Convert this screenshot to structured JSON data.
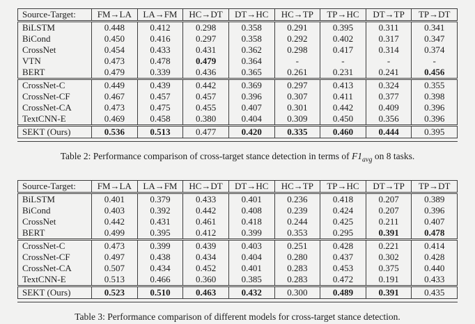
{
  "page": {
    "background": "#f2f2f1",
    "text_color": "#1c1c1c",
    "border_color": "#3d3d3d"
  },
  "tables": [
    {
      "id": "table-2",
      "header": [
        "Source-Target:",
        "FM→LA",
        "LA→FM",
        "HC→DT",
        "DT→HC",
        "HC→TP",
        "TP→HC",
        "DT→TP",
        "TP→DT"
      ],
      "groups": [
        {
          "rows": [
            {
              "label": "BiLSTM",
              "values": [
                "0.448",
                "0.412",
                "0.298",
                "0.358",
                "0.291",
                "0.395",
                "0.311",
                "0.341"
              ],
              "bold": []
            },
            {
              "label": "BiCond",
              "values": [
                "0.450",
                "0.416",
                "0.297",
                "0.358",
                "0.292",
                "0.402",
                "0.317",
                "0.347"
              ],
              "bold": []
            },
            {
              "label": "CrossNet",
              "values": [
                "0.454",
                "0.433",
                "0.431",
                "0.362",
                "0.298",
                "0.417",
                "0.314",
                "0.374"
              ],
              "bold": []
            },
            {
              "label": "VTN",
              "values": [
                "0.473",
                "0.478",
                "0.479",
                "0.364",
                "-",
                "-",
                "-",
                "-"
              ],
              "bold": [
                2
              ]
            },
            {
              "label": "BERT",
              "values": [
                "0.479",
                "0.339",
                "0.436",
                "0.365",
                "0.261",
                "0.231",
                "0.241",
                "0.456"
              ],
              "bold": [
                7
              ]
            }
          ]
        },
        {
          "rows": [
            {
              "label": "CrossNet-C",
              "values": [
                "0.449",
                "0.439",
                "0.442",
                "0.369",
                "0.297",
                "0.413",
                "0.324",
                "0.355"
              ],
              "bold": []
            },
            {
              "label": "CrossNet-CF",
              "values": [
                "0.467",
                "0.457",
                "0.457",
                "0.396",
                "0.307",
                "0.411",
                "0.377",
                "0.398"
              ],
              "bold": []
            },
            {
              "label": "CrossNet-CA",
              "values": [
                "0.473",
                "0.475",
                "0.455",
                "0.407",
                "0.301",
                "0.442",
                "0.409",
                "0.396"
              ],
              "bold": []
            },
            {
              "label": "TextCNN-E",
              "values": [
                "0.469",
                "0.458",
                "0.380",
                "0.404",
                "0.309",
                "0.450",
                "0.356",
                "0.396"
              ],
              "bold": []
            }
          ]
        },
        {
          "rows": [
            {
              "label": "SEKT (Ours)",
              "values": [
                "0.536",
                "0.513",
                "0.477",
                "0.420",
                "0.335",
                "0.460",
                "0.444",
                "0.395"
              ],
              "bold": [
                0,
                1,
                3,
                4,
                5,
                6
              ]
            }
          ]
        }
      ],
      "caption": {
        "prefix": "Table 2: Performance comparison of cross-target stance detection in terms of ",
        "math": "F1",
        "sub": "avg",
        "suffix": " on 8 tasks."
      }
    },
    {
      "id": "table-3",
      "header": [
        "Source-Target:",
        "FM→LA",
        "LA→FM",
        "HC→DT",
        "DT→HC",
        "HC→TP",
        "TP→HC",
        "DT→TP",
        "TP→DT"
      ],
      "groups": [
        {
          "rows": [
            {
              "label": "BiLSTM",
              "values": [
                "0.401",
                "0.379",
                "0.433",
                "0.401",
                "0.236",
                "0.418",
                "0.207",
                "0.389"
              ],
              "bold": []
            },
            {
              "label": "BiCond",
              "values": [
                "0.403",
                "0.392",
                "0.442",
                "0.408",
                "0.239",
                "0.424",
                "0.207",
                "0.396"
              ],
              "bold": []
            },
            {
              "label": "CrossNet",
              "values": [
                "0.442",
                "0.431",
                "0.461",
                "0.418",
                "0.244",
                "0.425",
                "0.211",
                "0.407"
              ],
              "bold": []
            },
            {
              "label": "BERT",
              "values": [
                "0.499",
                "0.395",
                "0.412",
                "0.399",
                "0.353",
                "0.295",
                "0.391",
                "0.478"
              ],
              "bold": [
                6,
                7
              ]
            }
          ]
        },
        {
          "rows": [
            {
              "label": "CrossNet-C",
              "values": [
                "0.473",
                "0.399",
                "0.439",
                "0.403",
                "0.251",
                "0.428",
                "0.221",
                "0.414"
              ],
              "bold": []
            },
            {
              "label": "CrossNet-CF",
              "values": [
                "0.497",
                "0.438",
                "0.434",
                "0.404",
                "0.280",
                "0.437",
                "0.302",
                "0.428"
              ],
              "bold": []
            },
            {
              "label": "CrossNet-CA",
              "values": [
                "0.507",
                "0.434",
                "0.452",
                "0.401",
                "0.283",
                "0.453",
                "0.375",
                "0.440"
              ],
              "bold": []
            },
            {
              "label": "TextCNN-E",
              "values": [
                "0.513",
                "0.466",
                "0.360",
                "0.385",
                "0.283",
                "0.472",
                "0.191",
                "0.433"
              ],
              "bold": []
            }
          ]
        },
        {
          "rows": [
            {
              "label": "SEKT (Ours)",
              "values": [
                "0.523",
                "0.510",
                "0.463",
                "0.432",
                "0.300",
                "0.489",
                "0.391",
                "0.435"
              ],
              "bold": [
                0,
                1,
                2,
                3,
                5,
                6
              ]
            }
          ]
        }
      ],
      "caption": {
        "prefix": "Table 3: Performance comparison of different models for cross-target stance detection.",
        "math": "",
        "sub": "",
        "suffix": ""
      }
    }
  ]
}
